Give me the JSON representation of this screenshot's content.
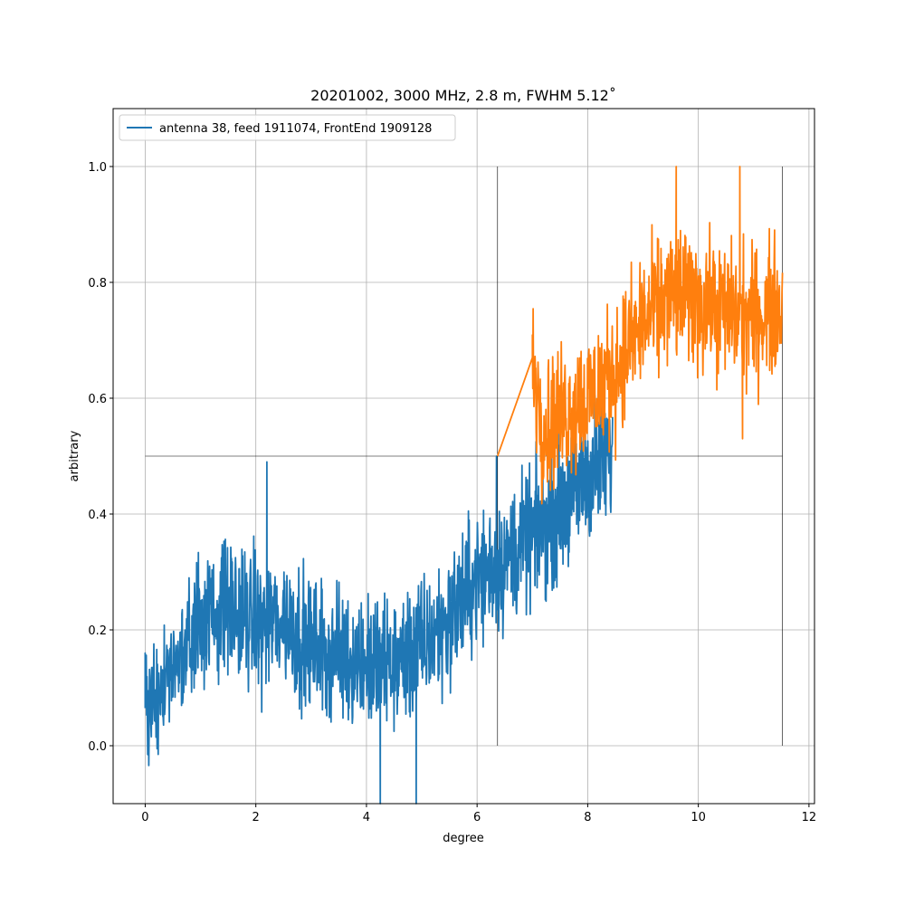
{
  "chart_data": {
    "type": "line",
    "title": "20201002, 3000 MHz, 2.8 m, FWHM 5.12˚",
    "xlabel": "degree",
    "ylabel": "arbitrary",
    "xlim": [
      -0.58,
      12.1
    ],
    "ylim": [
      -0.1,
      1.1
    ],
    "xticks": [
      0,
      2,
      4,
      6,
      8,
      10,
      12
    ],
    "xtick_labels": [
      "0",
      "2",
      "4",
      "6",
      "8",
      "10",
      "12"
    ],
    "yticks": [
      0.0,
      0.2,
      0.4,
      0.6,
      0.8,
      1.0
    ],
    "ytick_labels": [
      "0.0",
      "0.2",
      "0.4",
      "0.6",
      "0.8",
      "1.0"
    ],
    "grid": true,
    "legend": {
      "placement": "top-left",
      "entries": [
        "antenna 38, feed 1911074, FrontEnd 1909128"
      ]
    },
    "series": [
      {
        "name": "antenna 38, feed 1911074, FrontEnd 1909128",
        "color": "#1f77b4",
        "x_range": [
          0.0,
          8.45
        ],
        "trend": [
          [
            0.0,
            0.07
          ],
          [
            0.5,
            0.12
          ],
          [
            1.0,
            0.22
          ],
          [
            1.5,
            0.24
          ],
          [
            2.0,
            0.21
          ],
          [
            2.5,
            0.22
          ],
          [
            3.0,
            0.17
          ],
          [
            3.5,
            0.16
          ],
          [
            4.0,
            0.14
          ],
          [
            4.5,
            0.14
          ],
          [
            5.0,
            0.17
          ],
          [
            5.5,
            0.22
          ],
          [
            6.0,
            0.29
          ],
          [
            6.5,
            0.32
          ],
          [
            7.0,
            0.36
          ],
          [
            7.5,
            0.41
          ],
          [
            8.0,
            0.47
          ],
          [
            8.45,
            0.5
          ]
        ],
        "noise_amplitude": 0.085,
        "extremes": [
          [
            0.0,
            0.16
          ],
          [
            2.2,
            0.49
          ],
          [
            4.25,
            -0.1
          ],
          [
            4.9,
            -0.1
          ],
          [
            6.35,
            0.5
          ]
        ]
      },
      {
        "name": "",
        "color": "#ff7f0e",
        "x_range": [
          6.37,
          11.52
        ],
        "trend": [
          [
            6.37,
            0.5
          ],
          [
            7.0,
            0.67
          ],
          [
            7.2,
            0.55
          ],
          [
            7.6,
            0.58
          ],
          [
            8.0,
            0.6
          ],
          [
            8.5,
            0.65
          ],
          [
            9.0,
            0.73
          ],
          [
            9.5,
            0.78
          ],
          [
            10.0,
            0.77
          ],
          [
            10.5,
            0.75
          ],
          [
            11.0,
            0.74
          ],
          [
            11.5,
            0.76
          ]
        ],
        "noise_amplitude": 0.085,
        "extremes": [
          [
            9.6,
            1.0
          ],
          [
            10.75,
            1.0
          ],
          [
            10.8,
            0.53
          ]
        ]
      }
    ],
    "reference_lines": [
      {
        "kind": "horizontal",
        "y": 0.5,
        "x_from": 0.0,
        "x_to": 11.52
      },
      {
        "kind": "vertical",
        "x": 6.37,
        "y_from": 0.0,
        "y_to": 1.0
      },
      {
        "kind": "vertical",
        "x": 11.52,
        "y_from": 0.0,
        "y_to": 1.0
      }
    ]
  }
}
